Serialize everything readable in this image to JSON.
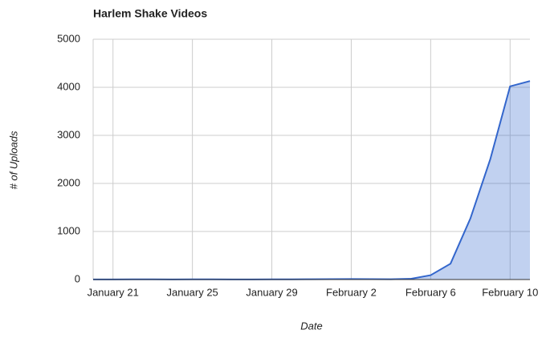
{
  "chart_data": {
    "type": "area",
    "title": "Harlem Shake Videos",
    "x_label": "Date",
    "y_label": "# of Uploads",
    "categories": [
      null,
      "January 21",
      null,
      null,
      null,
      "January 25",
      null,
      null,
      null,
      "January 29",
      null,
      null,
      null,
      "February 2",
      null,
      null,
      null,
      "February 6",
      null,
      null,
      null,
      "February 10",
      null
    ],
    "series": [
      {
        "name": "Uploads",
        "color": "#3366cc",
        "values": [
          3,
          2,
          4,
          4,
          3,
          4,
          5,
          3,
          3,
          4,
          5,
          6,
          8,
          10,
          8,
          6,
          15,
          90,
          330,
          1270,
          2500,
          4020,
          4130
        ]
      }
    ],
    "ylim": [
      0,
      5000
    ],
    "yticks": [
      0,
      1000,
      2000,
      3000,
      4000,
      5000
    ],
    "grid": true
  }
}
